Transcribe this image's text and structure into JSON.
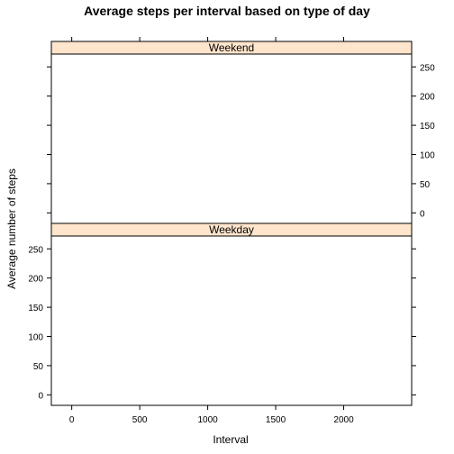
{
  "chart_data": {
    "type": "line",
    "title": "Average steps per interval based on type of day",
    "xlabel": "Interval",
    "ylabel": "Average number of steps",
    "xlim": [
      -150,
      2500
    ],
    "ylim": [
      -18,
      272
    ],
    "x_ticks": [
      0,
      500,
      1000,
      1500,
      2000
    ],
    "y_ticks": [
      0,
      50,
      100,
      150,
      200,
      250
    ],
    "strip_color": "#FFE5CC",
    "panels": [
      {
        "strip_label": "Weekend",
        "position": "top",
        "y_axis_side": "right",
        "series": []
      },
      {
        "strip_label": "Weekday",
        "position": "bottom",
        "y_axis_side": "left",
        "series": []
      }
    ]
  }
}
